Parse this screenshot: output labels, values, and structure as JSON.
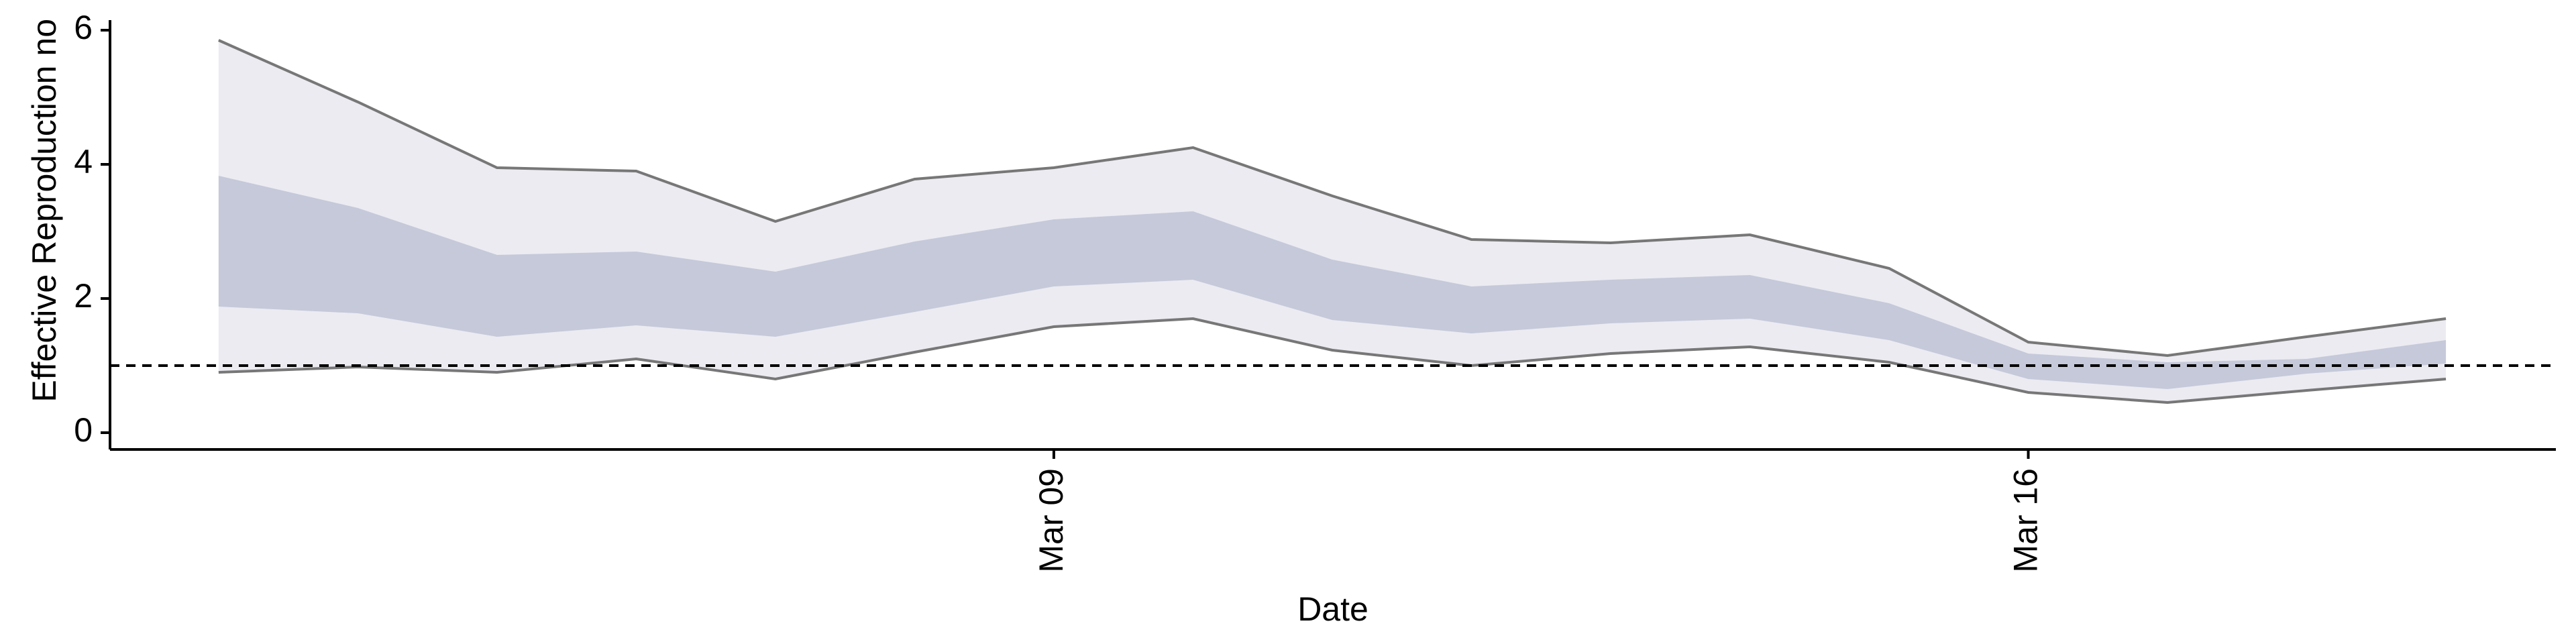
{
  "chart_data": {
    "type": "ribbon",
    "x_label": "Date",
    "y_label": "Effective Reproduction no",
    "x": [
      3,
      4,
      5,
      6,
      7,
      8,
      9,
      10,
      11,
      12,
      13,
      14,
      15,
      16,
      17,
      18,
      19
    ],
    "xlim": [
      2.22,
      19.79
    ],
    "xticks": [
      {
        "value": 9,
        "label": "Mar 09"
      },
      {
        "value": 16,
        "label": "Mar 16"
      }
    ],
    "ylim": [
      -0.25,
      6.15
    ],
    "yticks": [
      0,
      2,
      4,
      6
    ],
    "hline": 1,
    "ribbons": [
      {
        "color": "#ebebf1",
        "edge_color": "#777777",
        "upper": [
          5.85,
          4.93,
          3.95,
          3.9,
          3.15,
          3.78,
          3.95,
          4.25,
          3.53,
          2.88,
          2.83,
          2.95,
          2.45,
          1.35,
          1.15,
          1.43,
          1.7
        ],
        "lower": [
          0.9,
          0.98,
          0.9,
          1.1,
          0.8,
          1.2,
          1.58,
          1.7,
          1.23,
          1.0,
          1.18,
          1.28,
          1.05,
          0.6,
          0.45,
          0.63,
          0.8
        ]
      },
      {
        "color": "#c5c9da",
        "upper": [
          3.83,
          3.35,
          2.65,
          2.7,
          2.4,
          2.85,
          3.18,
          3.3,
          2.58,
          2.18,
          2.28,
          2.35,
          1.93,
          1.18,
          1.05,
          1.1,
          1.38
        ],
        "lower": [
          1.88,
          1.78,
          1.43,
          1.6,
          1.43,
          1.8,
          2.18,
          2.28,
          1.68,
          1.48,
          1.63,
          1.7,
          1.38,
          0.8,
          0.65,
          0.88,
          1.03
        ]
      }
    ]
  }
}
